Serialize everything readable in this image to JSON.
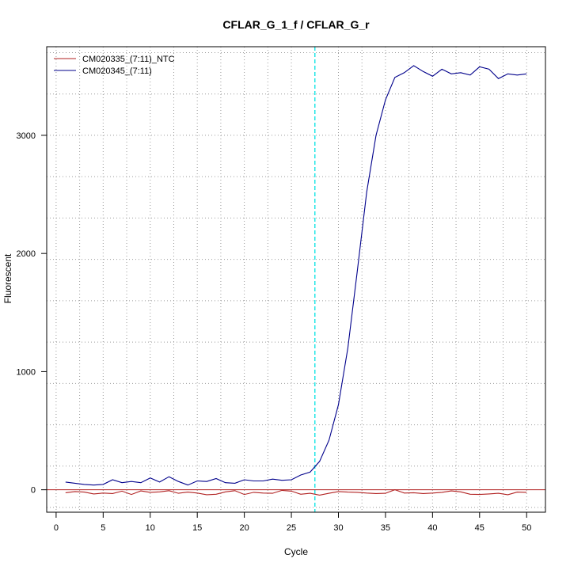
{
  "chart_data": {
    "type": "line",
    "title": "CFLAR_G_1_f / CFLAR_G_r",
    "xlabel": "Cycle",
    "ylabel": "Fluorescent",
    "xlim": [
      -1,
      52
    ],
    "ylim": [
      -190,
      3750
    ],
    "xticks": [
      0,
      5,
      10,
      15,
      20,
      25,
      30,
      35,
      40,
      45,
      50
    ],
    "yticks": [
      0,
      1000,
      2000,
      3000
    ],
    "grid": true,
    "legend_position": "top-left",
    "threshold_cycle": 27.5,
    "threshold_color": "#00e5e5",
    "baseline_color": "#b22222",
    "series": [
      {
        "name": "CM020335_(7:11)_NTC",
        "color": "#b22222",
        "x": [
          1,
          2,
          3,
          4,
          5,
          6,
          7,
          8,
          9,
          10,
          11,
          12,
          13,
          14,
          15,
          16,
          17,
          18,
          19,
          20,
          21,
          22,
          23,
          24,
          25,
          26,
          27,
          28,
          29,
          30,
          31,
          32,
          33,
          34,
          35,
          36,
          37,
          38,
          39,
          40,
          41,
          42,
          43,
          44,
          45,
          46,
          47,
          48,
          49,
          50
        ],
        "y": [
          -25,
          -15,
          -20,
          -35,
          -28,
          -32,
          -12,
          -40,
          -10,
          -22,
          -18,
          -8,
          -30,
          -20,
          -28,
          -42,
          -38,
          -18,
          -8,
          -40,
          -22,
          -28,
          -30,
          -5,
          -12,
          -38,
          -30,
          -45,
          -30,
          -15,
          -20,
          -22,
          -28,
          -32,
          -30,
          0,
          -28,
          -25,
          -32,
          -28,
          -22,
          -10,
          -18,
          -38,
          -40,
          -35,
          -30,
          -42,
          -20,
          -22
        ]
      },
      {
        "name": "CM020345_(7:11)",
        "color": "#00008b",
        "x": [
          1,
          2,
          3,
          4,
          5,
          6,
          7,
          8,
          9,
          10,
          11,
          12,
          13,
          14,
          15,
          16,
          17,
          18,
          19,
          20,
          21,
          22,
          23,
          24,
          25,
          26,
          27,
          28,
          29,
          30,
          31,
          32,
          33,
          34,
          35,
          36,
          37,
          38,
          39,
          40,
          41,
          42,
          43,
          44,
          45,
          46,
          47,
          48,
          49,
          50
        ],
        "y": [
          65,
          55,
          45,
          40,
          45,
          85,
          60,
          70,
          60,
          100,
          65,
          110,
          70,
          40,
          75,
          70,
          95,
          60,
          55,
          85,
          75,
          75,
          90,
          80,
          85,
          125,
          150,
          240,
          420,
          720,
          1200,
          1850,
          2520,
          3000,
          3300,
          3490,
          3530,
          3590,
          3540,
          3500,
          3560,
          3520,
          3530,
          3510,
          3580,
          3560,
          3480,
          3520,
          3510,
          3520
        ]
      }
    ]
  }
}
